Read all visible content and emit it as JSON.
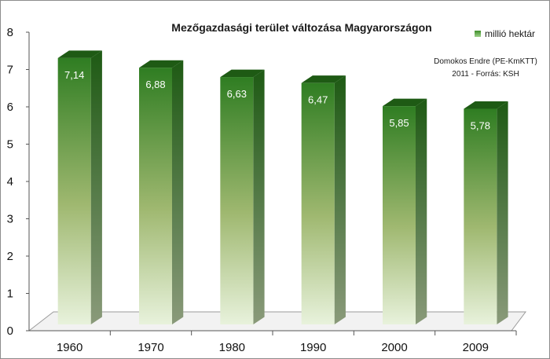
{
  "chart_data": {
    "type": "bar",
    "title": "Mezőgazdasági terület változása Magyarországon",
    "categories": [
      "1960",
      "1970",
      "1980",
      "1990",
      "2000",
      "2009"
    ],
    "series": [
      {
        "name": "millió hektár",
        "values": [
          7.14,
          6.88,
          6.63,
          6.47,
          5.85,
          5.78
        ],
        "labels": [
          "7,14",
          "6,88",
          "6,63",
          "6,47",
          "5,85",
          "5,78"
        ],
        "color": "#2f7d22"
      }
    ],
    "ylim": [
      0,
      8
    ],
    "yticks": [
      "0",
      "1",
      "2",
      "3",
      "4",
      "5",
      "6",
      "7",
      "8"
    ],
    "legend_position": "top-right",
    "annotation": [
      "Domokos Endre (PE-KmKTT)",
      "2011 - Forrás: KSH"
    ],
    "grid": false,
    "colors": {
      "bar_top": "#2f7d22",
      "bar_mid": "#9fb870",
      "bar_bottom": "#e8f2dc",
      "bar_side": "#3c6e2a",
      "bar_cap": "#1e5a14",
      "legend_marker": "#3f8f2a"
    }
  }
}
